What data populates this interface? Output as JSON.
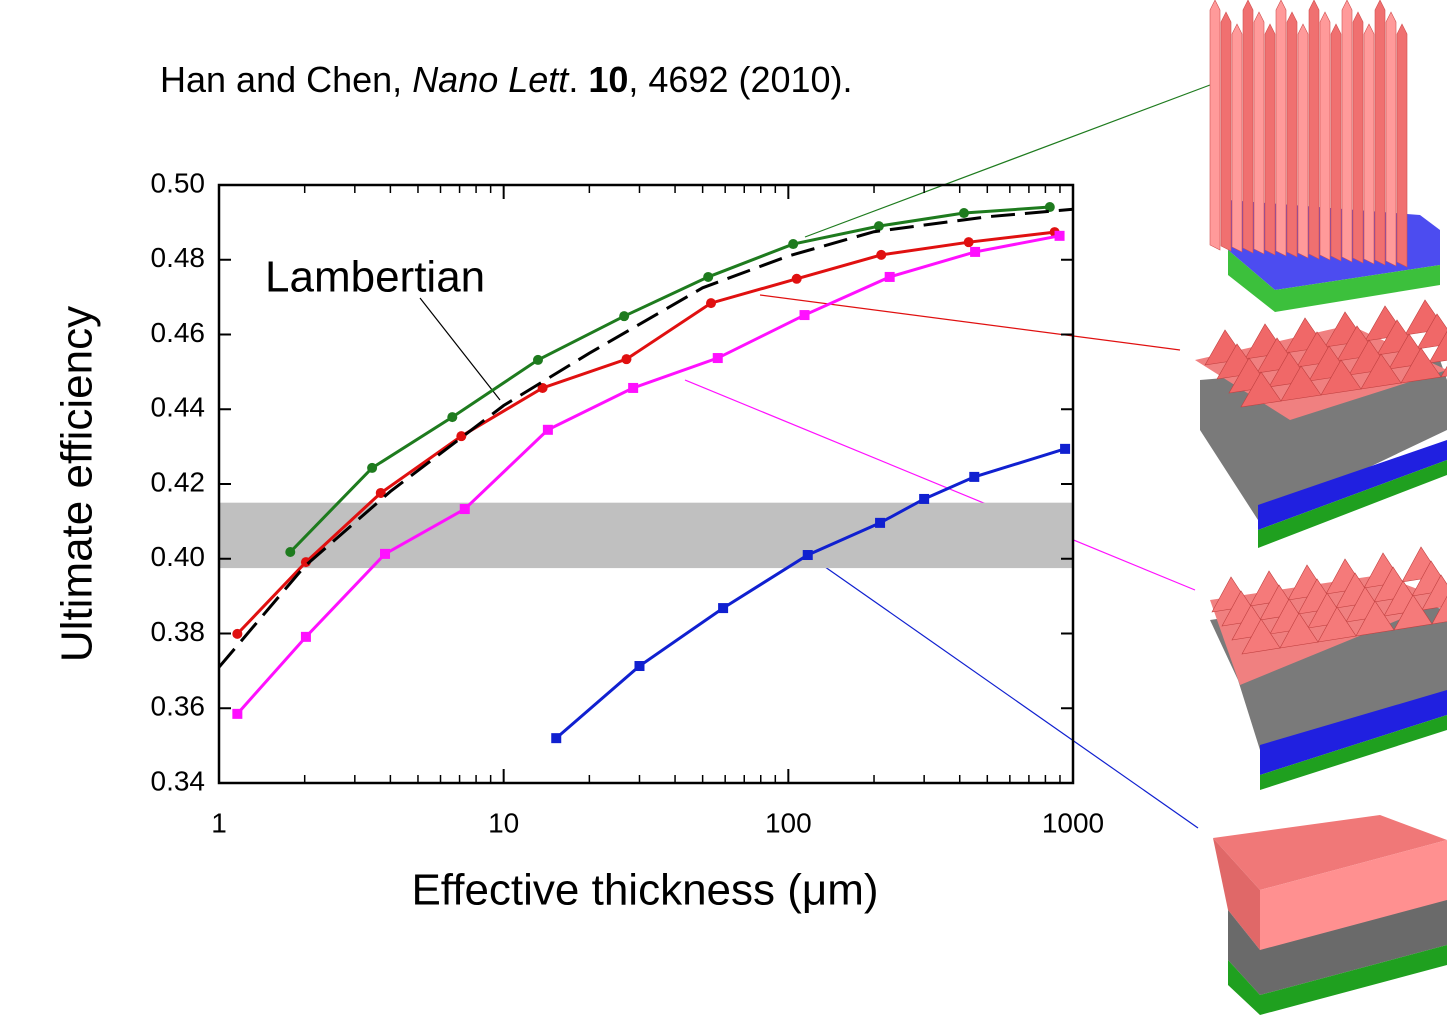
{
  "chart_data": {
    "type": "line",
    "citation": [
      "Han and Chen, ",
      "Nano Lett",
      ". ",
      "10",
      ", 4692 (2010)."
    ],
    "annotation": "Lambertian",
    "xlabel": "Effective thickness (μm)",
    "ylabel": "Ultimate efficiency",
    "xscale": "log",
    "xlim": [
      1,
      1000
    ],
    "ylim": [
      0.34,
      0.5
    ],
    "xticks": [
      1,
      10,
      100,
      1000
    ],
    "xminorticks": [
      2,
      3,
      4,
      5,
      6,
      7,
      8,
      9,
      20,
      30,
      40,
      50,
      60,
      70,
      80,
      90,
      200,
      300,
      400,
      500,
      600,
      700,
      800,
      900
    ],
    "yticks": [
      {
        "value": 0.34,
        "label": "0.34"
      },
      {
        "value": 0.36,
        "label": "0.36"
      },
      {
        "value": 0.38,
        "label": "0.38"
      },
      {
        "value": 0.4,
        "label": "0.40"
      },
      {
        "value": 0.42,
        "label": "0.42"
      },
      {
        "value": 0.44,
        "label": "0.44"
      },
      {
        "value": 0.46,
        "label": "0.46"
      },
      {
        "value": 0.48,
        "label": "0.48"
      },
      {
        "value": 0.5,
        "label": "0.50"
      }
    ],
    "band": {
      "ymin": 0.3975,
      "ymax": 0.415,
      "color": "#c0c0c0"
    },
    "series": [
      {
        "color": "#1e7b1e",
        "marker": "circle",
        "x": [
          1.78,
          3.45,
          6.6,
          13.2,
          26.5,
          52.3,
          104,
          208,
          414,
          829
        ],
        "values": [
          0.4018,
          0.4243,
          0.4379,
          0.4532,
          0.4649,
          0.4754,
          0.4842,
          0.489,
          0.4925,
          0.4941
        ]
      },
      {
        "color": "#e01010",
        "marker": "circle",
        "x": [
          1.16,
          2.02,
          3.7,
          7.1,
          13.7,
          27,
          53.5,
          107,
          212,
          430,
          862
        ],
        "values": [
          0.3799,
          0.3991,
          0.4176,
          0.4328,
          0.4457,
          0.4534,
          0.4684,
          0.4749,
          0.4813,
          0.4847,
          0.4874
        ]
      },
      {
        "color": "#ff10ff",
        "marker": "square",
        "x": [
          1.16,
          2.02,
          3.83,
          7.3,
          14.3,
          28.5,
          56.5,
          114,
          227,
          453,
          897
        ],
        "values": [
          0.3585,
          0.3791,
          0.4013,
          0.4133,
          0.4345,
          0.4457,
          0.4537,
          0.4652,
          0.4754,
          0.4821,
          0.4864
        ]
      },
      {
        "color": "#1020d0",
        "marker": "square",
        "x": [
          15.3,
          30,
          59,
          117,
          210,
          300,
          450,
          938
        ],
        "values": [
          0.352,
          0.3713,
          0.3868,
          0.401,
          0.4096,
          0.416,
          0.4219,
          0.4294
        ]
      },
      {
        "name": "Lambertian",
        "color": "#000000",
        "dash": true,
        "x": [
          1,
          2,
          4,
          10,
          20,
          50,
          100,
          200,
          500,
          1000
        ],
        "values": [
          0.371,
          0.398,
          0.418,
          0.441,
          0.455,
          0.4725,
          0.481,
          0.4875,
          0.4915,
          0.4935
        ]
      }
    ]
  }
}
